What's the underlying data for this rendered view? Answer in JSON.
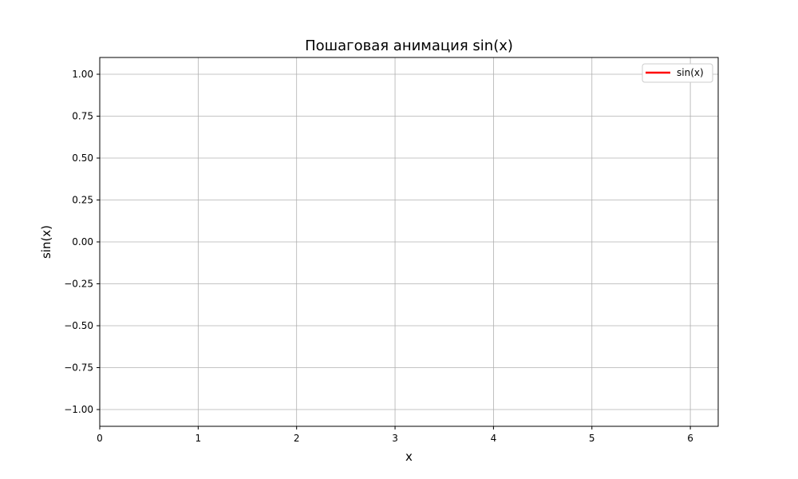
{
  "chart_data": {
    "type": "line",
    "title": "Пошаговая анимация sin(x)",
    "xlabel": "x",
    "ylabel": "sin(x)",
    "xlim": [
      0,
      6.283
    ],
    "ylim": [
      -1.1,
      1.1
    ],
    "xticks": [
      0,
      1,
      2,
      3,
      4,
      5,
      6
    ],
    "xtick_labels": [
      "0",
      "1",
      "2",
      "3",
      "4",
      "5",
      "6"
    ],
    "yticks": [
      1.0,
      0.75,
      0.5,
      0.25,
      0.0,
      -0.25,
      -0.5,
      -0.75,
      -1.0
    ],
    "ytick_labels": [
      "1.00",
      "0.75",
      "0.50",
      "0.25",
      "0.00",
      "−0.25",
      "−0.50",
      "−0.75",
      "−1.00"
    ],
    "grid": true,
    "legend_position": "top-right",
    "series": [
      {
        "name": "sin(x)",
        "color": "#ff0000",
        "x": [],
        "y": []
      }
    ]
  }
}
